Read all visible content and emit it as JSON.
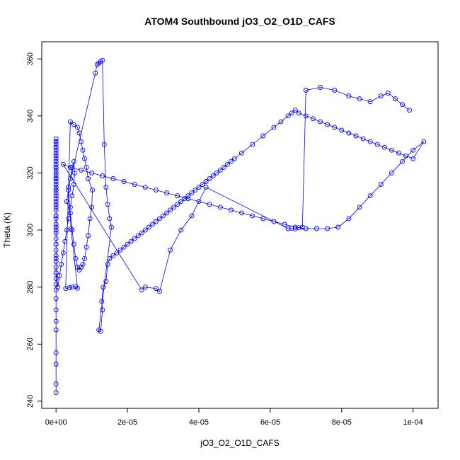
{
  "chart_data": {
    "type": "scatter",
    "title": "ATOM4 Southbound jO3_O2_O1D_CAFS",
    "xlabel": "jO3_O2_O1D_CAFS",
    "ylabel": "Theta (K)",
    "xlim": [
      -4e-06,
      0.000107
    ],
    "ylim": [
      237.5,
      366
    ],
    "xticks": [
      0,
      2e-05,
      4e-05,
      6e-05,
      8e-05,
      0.0001
    ],
    "xtick_labels": [
      "0e+00",
      "2e-05",
      "4e-05",
      "6e-05",
      "8e-05",
      "1e-04"
    ],
    "yticks": [
      240,
      260,
      280,
      300,
      320,
      340,
      360
    ],
    "ytick_labels": [
      "240",
      "260",
      "280",
      "300",
      "320",
      "340",
      "360"
    ],
    "grid": false,
    "series": [
      {
        "color": "#0000ff",
        "marker": "open-circle",
        "connected": true,
        "x": [
          0.0,
          0.0,
          0.0,
          0.0,
          0.0,
          0.0,
          0.0,
          0.0,
          0.0,
          0.0,
          0.0,
          0.0,
          0.0,
          0.0,
          0.0,
          0.0,
          0.0,
          0.0,
          0.0,
          0.0,
          0.0,
          0.0,
          0.0,
          0.0,
          0.0,
          0.0,
          0.0,
          0.0,
          0.0,
          0.0,
          0.0,
          0.0,
          0.0,
          0.0,
          0.0,
          0.0,
          0.0,
          0.0,
          0.0,
          0.0,
          0.0,
          0.0,
          0.0,
          0.0,
          0.0,
          0.0,
          0.0,
          0.0,
          0.0,
          0.0,
          0.0,
          0.0,
          0.0,
          0.0,
          0.0,
          0.0,
          0.0,
          0.0,
          0.0,
          0.0,
          5e-07,
          1e-06,
          1.5e-06,
          2e-06,
          2.5e-06,
          3e-06,
          3.5e-06,
          4e-06,
          4.5e-06,
          5e-06,
          5.2e-06,
          5e-06,
          4.5e-06,
          4e-06,
          3.5e-06,
          3e-06,
          4e-06,
          4.5e-06,
          5e-06,
          5.5e-06,
          6e-06,
          6.5e-06,
          7e-06,
          7.5e-06,
          8e-06,
          8.5e-06,
          9e-06,
          9.5e-06,
          1e-05,
          1.02e-05,
          9e-06,
          8.5e-06,
          8e-06,
          7.5e-06,
          7e-06,
          6.5e-06,
          6e-06,
          5e-06,
          4e-06,
          2.7e-06,
          3.8e-06,
          4.5e-06,
          5.5e-06,
          6e-06,
          4.2e-06,
          3.5e-06,
          1.1e-05,
          1.15e-05,
          1.2e-05,
          1.25e-05,
          1.3e-05,
          1.35e-05,
          1.4e-05,
          1.45e-05,
          1.5e-05,
          1.55e-05,
          1.2e-05,
          1.25e-05,
          1.3e-05,
          1.28e-05,
          1.32e-05,
          1.4e-05,
          1.45e-05,
          1.5e-05,
          1.6e-05,
          1.7e-05,
          1.8e-05,
          1.9e-05,
          2e-05,
          2.1e-05,
          2.2e-05,
          2.3e-05,
          2.4e-05,
          2.5e-05,
          2.6e-05,
          2.7e-05,
          2.8e-05,
          2.9e-05,
          3e-05,
          3.1e-05,
          3.2e-05,
          3.3e-05,
          3.4e-05,
          3.5e-05,
          3.6e-05,
          3.7e-05,
          3.8e-05,
          3.9e-05,
          4e-05,
          4.1e-05,
          4.2e-05,
          4.3e-05,
          4.4e-05,
          4.5e-05,
          4.6e-05,
          4.7e-05,
          4.8e-05,
          4.9e-05,
          5e-05,
          5.2e-05,
          5.5e-05,
          5.8e-05,
          6.1e-05,
          6.3e-05,
          6.5e-05,
          6.6e-05,
          6.7e-05,
          6.8e-05,
          7e-05,
          7.2e-05,
          7.4e-05,
          7.6e-05,
          7.8e-05,
          8e-05,
          8.2e-05,
          8.4e-05,
          8.6e-05,
          8.8e-05,
          9e-05,
          9.2e-05,
          9.4e-05,
          9.6e-05,
          9.8e-05,
          0.0001,
          0.000103,
          0.0001,
          9.7e-05,
          9.4e-05,
          9.1e-05,
          8.8e-05,
          8.5e-05,
          8.2e-05,
          7.9e-05,
          7.6e-05,
          7.3e-05,
          7e-05,
          6.7e-05,
          6.4e-05,
          6.1e-05,
          5.8e-05,
          5.5e-05,
          5.2e-05,
          4.9e-05,
          4.6e-05,
          4.3e-05,
          4e-05,
          3.7e-05,
          3.4e-05,
          3.1e-05,
          2.8e-05,
          2.5e-05,
          2.2e-05,
          1.9e-05,
          1.6e-05,
          1.3e-05,
          1e-05,
          7e-06,
          4e-06,
          2e-06,
          2.4e-05,
          2.5e-05,
          2.8e-05,
          2.9e-05,
          3.2e-05,
          3.5e-05,
          3.8e-05,
          4.2e-05,
          6.5e-05,
          6.6e-05,
          6.7e-05,
          6.8e-05,
          6.9e-05,
          7e-05,
          7.4e-05,
          7.8e-05,
          8.2e-05,
          8.5e-05,
          8.8e-05,
          9.1e-05,
          9.3e-05,
          9.5e-05,
          9.7e-05,
          9.9e-05
        ],
        "y": [
          243,
          246,
          253,
          257,
          265,
          268,
          272,
          276,
          279,
          281,
          283,
          285,
          287,
          289,
          291,
          293,
          295,
          297,
          299,
          301,
          302,
          304,
          305,
          307,
          308,
          309,
          311,
          312,
          313,
          314,
          315,
          316,
          317,
          318,
          319,
          320,
          321,
          322,
          323,
          324,
          325,
          326,
          327,
          328,
          329,
          330,
          331,
          332,
          331,
          329,
          326,
          322,
          318,
          314,
          310,
          305,
          300,
          295,
          290,
          285,
          280,
          284,
          288,
          292,
          296,
          300,
          304,
          308,
          312,
          316,
          320,
          324,
          322,
          318,
          314,
          310,
          306,
          300,
          295,
          290,
          287,
          286,
          287,
          288,
          290,
          294,
          298,
          304,
          308,
          314,
          318,
          322,
          325,
          328,
          331,
          334,
          336,
          337,
          338,
          279.5,
          279.8,
          280,
          280.2,
          279.6,
          300.4,
          315,
          355,
          358,
          358.5,
          359,
          359.5,
          330,
          315,
          309,
          304,
          301,
          265,
          264.5,
          272,
          275,
          280,
          282,
          288,
          290,
          291,
          292,
          293,
          294,
          295,
          296,
          297,
          298,
          299,
          300,
          301,
          302,
          303,
          304,
          305,
          306,
          307,
          308,
          309,
          310,
          311,
          312,
          313,
          314,
          315,
          316,
          317,
          318,
          319,
          320,
          321,
          322,
          323,
          324,
          325,
          327,
          330,
          333,
          336,
          338,
          340,
          341,
          342,
          341,
          340,
          339,
          338,
          337,
          336,
          335,
          334,
          333,
          332,
          331,
          330,
          329,
          328,
          327,
          326,
          325,
          331,
          328,
          324,
          320,
          316,
          312,
          308,
          304,
          301,
          300.5,
          300.5,
          300.5,
          301,
          302,
          303,
          304,
          305,
          306,
          307,
          308,
          309,
          310,
          311,
          312,
          313,
          314,
          315,
          316,
          317,
          318,
          319,
          320,
          321,
          322,
          323,
          279,
          280,
          279.5,
          278.5,
          293,
          300,
          305,
          315,
          300.5,
          300.6,
          300.4,
          300.8,
          301,
          349,
          350,
          349,
          347,
          346,
          345,
          347,
          348,
          346,
          344,
          342
        ]
      }
    ]
  }
}
